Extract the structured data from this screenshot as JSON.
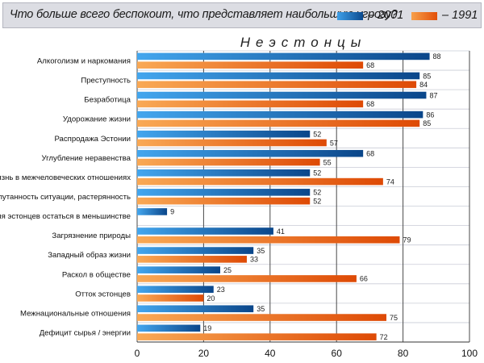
{
  "header": {
    "title": "Что больше всего беспокоит, что представляет наибольшую угрозу?"
  },
  "legend": [
    {
      "label": "– 2001",
      "color": "#0b4a8f"
    },
    {
      "label": "– 1991",
      "color": "#e24f08"
    }
  ],
  "chart_data": {
    "type": "bar",
    "orientation": "horizontal",
    "title": "Что больше всего беспокоит, что представляет наибольшую угрозу?",
    "subtitle": "Неэстонцы",
    "categories": [
      "Алкоголизм и наркомания",
      "Преступность",
      "Безработица",
      "Удорожание жизни",
      "Распродажа Эстонии",
      "Углубление неравенства",
      "Неприязнь в межчеловеческих отношениях",
      "Запутанность ситуации, растерянность",
      "Угроза для эстонцев остаться в меньшинстве",
      "Загрязнение природы",
      "Западный образ жизни",
      "Раскол в обществе",
      "Отток эстонцев",
      "Межнациональные отношения",
      "Дефицит сырья / энергии"
    ],
    "series": [
      {
        "name": "– 2001",
        "color": "#0b4a8f",
        "values": [
          88,
          85,
          87,
          86,
          52,
          68,
          52,
          52,
          9,
          41,
          35,
          25,
          23,
          35,
          19
        ]
      },
      {
        "name": "– 1991",
        "color": "#e24f08",
        "values": [
          68,
          84,
          68,
          85,
          57,
          55,
          74,
          52,
          null,
          79,
          33,
          66,
          20,
          75,
          72
        ]
      }
    ],
    "xlim": [
      0,
      100
    ],
    "xticks": [
      0,
      20,
      40,
      60,
      80,
      100
    ],
    "grid": true,
    "legend_position": "top-right"
  }
}
